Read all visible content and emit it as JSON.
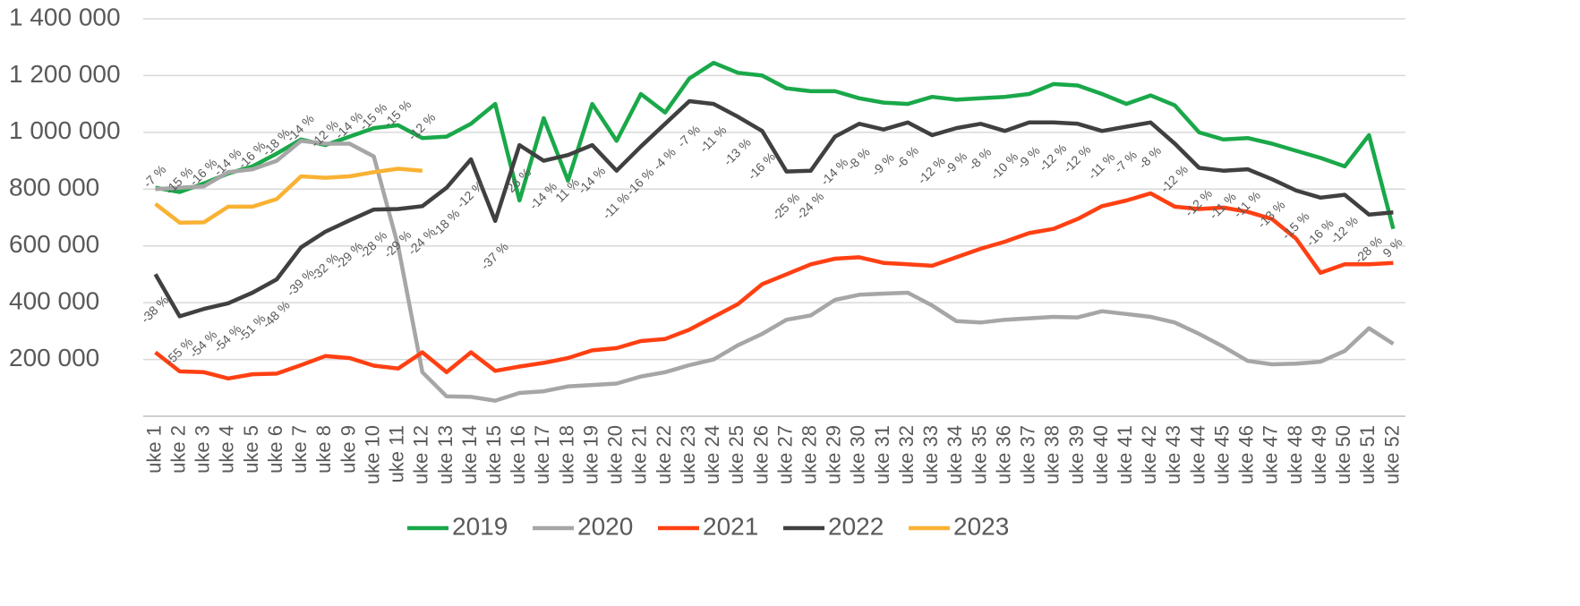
{
  "chart_data": {
    "type": "line",
    "categories": [
      "uke 1",
      "uke 2",
      "uke 3",
      "uke 4",
      "uke 5",
      "uke 6",
      "uke 7",
      "uke 8",
      "uke 9",
      "uke 10",
      "uke 11",
      "uke 12",
      "uke 13",
      "uke 14",
      "uke 15",
      "uke 16",
      "uke 17",
      "uke 18",
      "uke 19",
      "uke 20",
      "uke 21",
      "uke 22",
      "uke 23",
      "uke 24",
      "uke 25",
      "uke 26",
      "uke 27",
      "uke 28",
      "uke 29",
      "uke 30",
      "uke 31",
      "uke 32",
      "uke 33",
      "uke 34",
      "uke 35",
      "uke 36",
      "uke 37",
      "uke 38",
      "uke 39",
      "uke 40",
      "uke 41",
      "uke 42",
      "uke 43",
      "uke 44",
      "uke 45",
      "uke 46",
      "uke 47",
      "uke 48",
      "uke 49",
      "uke 50",
      "uke 51",
      "uke 52"
    ],
    "ylim": [
      0,
      1400000
    ],
    "yticks": [
      {
        "value": 200000,
        "label": "200 000"
      },
      {
        "value": 400000,
        "label": "400 000"
      },
      {
        "value": 600000,
        "label": "600 000"
      },
      {
        "value": 800000,
        "label": "800 000"
      },
      {
        "value": 1000000,
        "label": "1 000 000"
      },
      {
        "value": 1200000,
        "label": "1 200 000"
      },
      {
        "value": 1400000,
        "label": "1 400 000"
      }
    ],
    "grid": true,
    "legend": "bottom",
    "series": [
      {
        "name": "2019",
        "color": "#1aa84a",
        "values": [
          805000,
          790000,
          820000,
          855000,
          880000,
          925000,
          975000,
          955000,
          985000,
          1015000,
          1025000,
          980000,
          985000,
          1030000,
          1100000,
          760000,
          1050000,
          830000,
          1100000,
          970000,
          1135000,
          1070000,
          1190000,
          1245000,
          1210000,
          1200000,
          1155000,
          1145000,
          1145000,
          1120000,
          1105000,
          1100000,
          1125000,
          1115000,
          1120000,
          1125000,
          1135000,
          1170000,
          1165000,
          1135000,
          1100000,
          1130000,
          1095000,
          1000000,
          975000,
          980000,
          960000,
          935000,
          910000,
          880000,
          990000,
          660000
        ]
      },
      {
        "name": "2020",
        "color": "#a6a6a6",
        "values": [
          800000,
          805000,
          810000,
          860000,
          870000,
          900000,
          970000,
          960000,
          960000,
          915000,
          600000,
          155000,
          70000,
          68000,
          55000,
          82000,
          88000,
          105000,
          110000,
          115000,
          140000,
          155000,
          180000,
          200000,
          250000,
          290000,
          340000,
          355000,
          410000,
          428000,
          432000,
          435000,
          390000,
          335000,
          330000,
          340000,
          345000,
          350000,
          348000,
          370000,
          360000,
          350000,
          330000,
          290000,
          245000,
          195000,
          183000,
          185000,
          192000,
          230000,
          310000,
          255000
        ]
      },
      {
        "name": "2021",
        "color": "#ff4013",
        "values": [
          225000,
          158000,
          155000,
          133000,
          148000,
          150000,
          180000,
          212000,
          205000,
          178000,
          168000,
          225000,
          155000,
          225000,
          160000,
          175000,
          188000,
          205000,
          232000,
          240000,
          265000,
          272000,
          305000,
          350000,
          395000,
          465000,
          500000,
          535000,
          555000,
          560000,
          540000,
          535000,
          530000,
          560000,
          590000,
          615000,
          645000,
          660000,
          695000,
          740000,
          760000,
          785000,
          738000,
          730000,
          735000,
          720000,
          695000,
          625000,
          505000,
          535000,
          535000,
          540000
        ]
      },
      {
        "name": "2022",
        "color": "#404040",
        "values": [
          500000,
          352000,
          378000,
          398000,
          435000,
          482000,
          595000,
          650000,
          690000,
          728000,
          730000,
          740000,
          805000,
          905000,
          688000,
          955000,
          900000,
          920000,
          955000,
          865000,
          950000,
          1030000,
          1110000,
          1100000,
          1055000,
          1005000,
          862000,
          865000,
          985000,
          1030000,
          1010000,
          1035000,
          990000,
          1015000,
          1030000,
          1005000,
          1035000,
          1035000,
          1030000,
          1005000,
          1020000,
          1035000,
          960000,
          875000,
          865000,
          870000,
          835000,
          795000,
          770000,
          780000,
          710000,
          718000
        ],
        "change_labels": [
          "-38 %",
          "-55 %",
          "-54 %",
          "-54 %",
          "-51 %",
          "-48 %",
          "-39 %",
          "-32 %",
          "-29 %",
          "-28 %",
          "-29 %",
          "-24 %",
          "-18 %",
          "-12 %",
          "-37 %",
          "26 %",
          "-14 %",
          "11 %",
          "-14 %",
          "-11 %",
          "-16 %",
          "-4 %",
          "-7 %",
          "-11 %",
          "-13 %",
          "-16 %",
          "-25 %",
          "-24 %",
          "-14 %",
          "-8 %",
          "-9 %",
          "-6 %",
          "-12 %",
          "-9 %",
          "-8 %",
          "-10 %",
          "-9 %",
          "-12 %",
          "-12 %",
          "-11 %",
          "-7 %",
          "-8 %",
          "-12 %",
          "-12 %",
          "-11 %",
          "-11 %",
          "-13 %",
          "-15 %",
          "-16 %",
          "-12 %",
          "-28 %",
          "9 %"
        ]
      },
      {
        "name": "2023",
        "color": "#f9b234",
        "values": [
          748000,
          682000,
          683000,
          738000,
          738000,
          765000,
          845000,
          840000,
          845000,
          860000,
          872000,
          865000,
          null,
          null,
          null,
          null,
          null,
          null,
          null,
          null,
          null,
          null,
          null,
          null,
          null,
          null,
          null,
          null,
          null,
          null,
          null,
          null,
          null,
          null,
          null,
          null,
          null,
          null,
          null,
          null,
          null,
          null,
          null,
          null,
          null,
          null,
          null,
          null,
          null,
          null,
          null,
          null
        ],
        "change_labels": [
          "-7 %",
          "-15 %",
          "-16 %",
          "-14 %",
          "-16 %",
          "-18 %",
          "-14 %",
          "-12 %",
          "-14 %",
          "-15 %",
          "-15 %",
          "-12 %"
        ]
      }
    ]
  }
}
